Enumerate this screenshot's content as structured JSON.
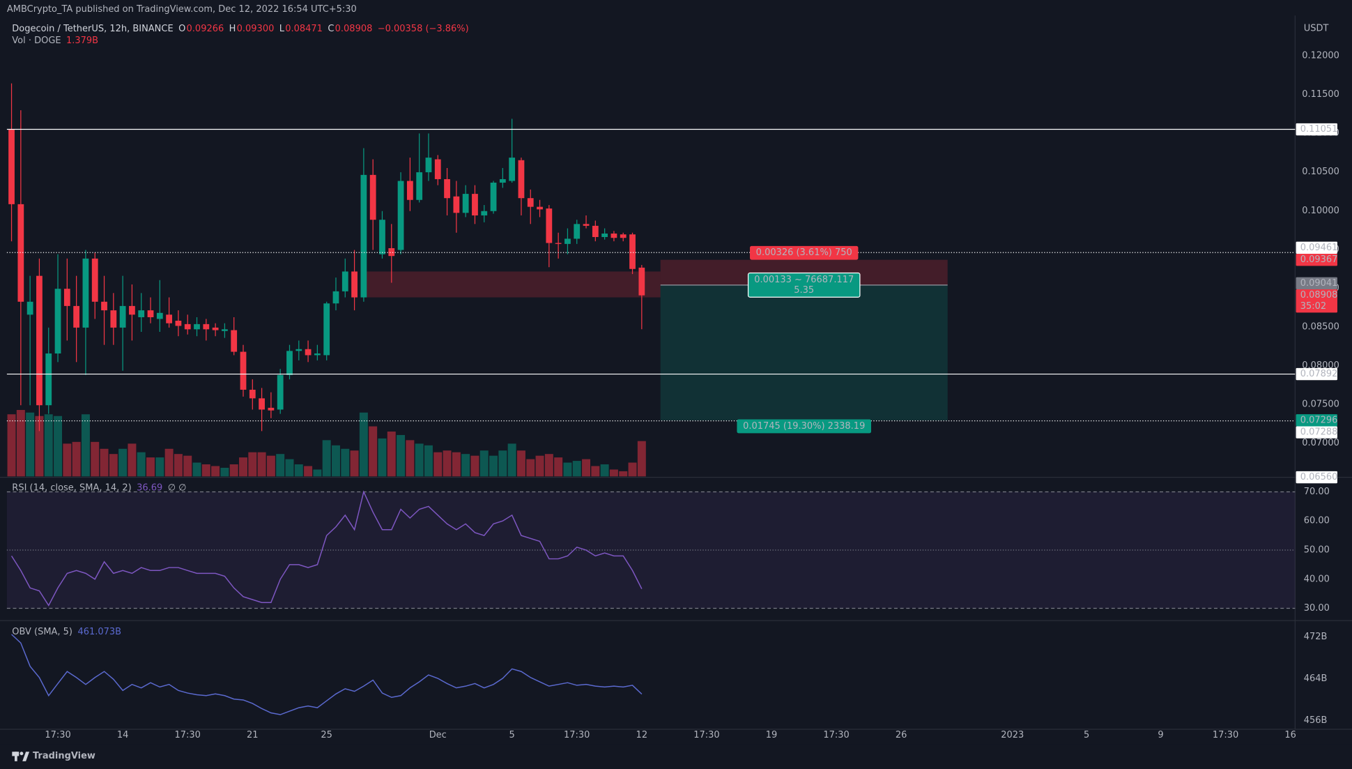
{
  "header": {
    "publisher": "AMBCrypto_TA published on TradingView.com, Dec 12, 2022 16:54 UTC+5:30",
    "symbol": "Dogecoin / TetherUS, 12h, BINANCE",
    "ohlc": [
      {
        "key": "O",
        "value": "0.09266"
      },
      {
        "key": "H",
        "value": "0.09300"
      },
      {
        "key": "L",
        "value": "0.08471"
      },
      {
        "key": "C",
        "value": "0.08908"
      }
    ],
    "change": "−0.00358 (−3.86%)",
    "volume_name": "Vol · DOGE",
    "volume_value": "1.379B",
    "currency": "USDT"
  },
  "chart_data": [
    {
      "type": "candlestick",
      "categories": [
        null,
        null,
        null,
        null,
        null,
        "17:30",
        null,
        null,
        null,
        null,
        null,
        null,
        "14",
        null,
        null,
        null,
        null,
        null,
        null,
        "17:30",
        null,
        null,
        null,
        null,
        null,
        null,
        "21",
        null,
        null,
        null,
        null,
        null,
        null,
        null,
        "25",
        null,
        null,
        null,
        null,
        null,
        null,
        null,
        null,
        null,
        null,
        null,
        "Dec",
        null,
        null,
        null,
        null,
        null,
        null,
        null,
        "5",
        null,
        null,
        null,
        null,
        null,
        null,
        "17:30",
        null,
        null,
        null,
        null,
        null,
        null,
        "12",
        null,
        null,
        null,
        null,
        null,
        null,
        "17:30",
        null,
        null,
        null,
        null,
        null,
        null,
        "19",
        null,
        null,
        null,
        null,
        null,
        null,
        "17:30",
        null,
        null,
        null,
        null,
        null,
        null,
        "26",
        null,
        null,
        null,
        null,
        null,
        null,
        null,
        null,
        null,
        null,
        null,
        "2023",
        null,
        null,
        null,
        null,
        null,
        null,
        null,
        "5",
        null,
        null,
        null,
        null,
        null,
        null,
        null,
        "9",
        null,
        null,
        null,
        null,
        null,
        null,
        "17:30",
        null,
        null,
        null,
        null,
        null,
        null,
        "16"
      ],
      "open": [
        0.11053,
        0.10085,
        0.08659,
        0.0916,
        0.0749,
        0.08158,
        0.08993,
        0.08771,
        0.08492,
        0.09383,
        0.08826,
        0.08715,
        0.08492,
        0.08771,
        0.08626,
        0.08715,
        0.08604,
        0.08659,
        0.08581,
        0.08537,
        0.0847,
        0.08537,
        0.08492,
        0.08448,
        0.08459,
        0.0818,
        0.0769,
        0.07579,
        0.07457,
        0.07434,
        0.0788,
        0.08191,
        0.08214,
        0.08136,
        0.08136,
        0.08804,
        0.0896,
        0.09216,
        0.08882,
        0.10463,
        0.09439,
        0.09517,
        0.09494,
        0.10385,
        0.1014,
        0.10497,
        0.10664,
        0.10408,
        0.10185,
        0.09973,
        0.10218,
        0.0994,
        0.09996,
        0.10363,
        0.10385,
        0.10653,
        0.10163,
        0.10051,
        0.10029,
        0.09584,
        0.09572,
        0.09639,
        0.09829,
        0.09806,
        0.09661,
        0.09706,
        0.09695,
        0.09695,
        0.09266,
        null,
        null,
        null,
        null,
        null,
        null,
        null,
        null,
        null,
        null,
        null,
        null,
        null,
        null,
        null,
        null,
        null,
        null,
        null,
        null,
        null,
        null,
        null,
        null,
        null,
        null,
        null,
        null,
        null,
        null,
        null,
        null,
        null,
        null,
        null,
        null,
        null,
        null,
        null,
        null,
        null,
        null,
        null,
        null,
        null,
        null,
        null,
        null,
        null,
        null,
        null,
        null,
        null,
        null,
        null,
        null,
        null,
        null,
        null,
        null,
        null,
        null,
        null,
        null,
        null,
        null,
        null,
        null,
        null,
        null
      ],
      "high": [
        0.11644,
        0.11298,
        0.0916,
        0.09383,
        0.08492,
        0.09439,
        0.09383,
        0.0916,
        0.09494,
        0.09461,
        0.0916,
        0.08938,
        0.0916,
        0.09049,
        0.08938,
        0.08882,
        0.09105,
        0.08882,
        0.08715,
        0.08659,
        0.08626,
        0.08604,
        0.08548,
        0.08548,
        0.08626,
        0.08269,
        0.07824,
        0.07713,
        0.07657,
        0.07958,
        0.08269,
        0.08325,
        0.08325,
        0.08269,
        0.08826,
        0.09138,
        0.09383,
        0.09494,
        0.10808,
        0.10664,
        0.09996,
        0.09829,
        0.10497,
        0.10686,
        0.10998,
        0.10998,
        0.10719,
        0.10552,
        0.10385,
        0.1033,
        0.1033,
        0.10074,
        0.10385,
        0.10552,
        0.11187,
        0.10686,
        0.10274,
        0.1014,
        0.10074,
        0.09717,
        0.09773,
        0.09884,
        0.0994,
        0.09873,
        0.09773,
        0.09739,
        0.09717,
        0.09717,
        0.093,
        null,
        null,
        null,
        null,
        null,
        null,
        null,
        null,
        null,
        null,
        null,
        null,
        null,
        null,
        null,
        null,
        null,
        null,
        null,
        null,
        null,
        null,
        null,
        null,
        null,
        null,
        null,
        null,
        null,
        null,
        null,
        null,
        null,
        null,
        null,
        null,
        null,
        null,
        null,
        null,
        null,
        null,
        null,
        null,
        null,
        null,
        null,
        null,
        null,
        null,
        null,
        null,
        null,
        null,
        null,
        null,
        null,
        null,
        null,
        null,
        null,
        null,
        null,
        null,
        null,
        null,
        null,
        null,
        null,
        null
      ],
      "low": [
        0.09606,
        0.0749,
        0.0749,
        0.07156,
        0.07379,
        0.08047,
        0.08325,
        0.08047,
        0.0788,
        0.08604,
        0.08269,
        0.08269,
        0.07935,
        0.08325,
        0.08437,
        0.08548,
        0.08437,
        0.08492,
        0.08381,
        0.08403,
        0.08381,
        0.08325,
        0.08381,
        0.08359,
        0.08136,
        0.07601,
        0.07434,
        0.07156,
        0.07323,
        0.07379,
        0.07824,
        0.08069,
        0.08047,
        0.08069,
        0.08069,
        0.08715,
        0.08882,
        0.08715,
        0.08826,
        0.09494,
        0.09383,
        0.09071,
        0.09439,
        0.09996,
        0.10107,
        0.10385,
        0.1033,
        0.0994,
        0.09717,
        0.09918,
        0.09829,
        0.09851,
        0.09962,
        0.10296,
        0.10363,
        0.0994,
        0.09829,
        0.09918,
        0.09272,
        0.09383,
        0.09439,
        0.09572,
        0.09773,
        0.09606,
        0.09628,
        0.09606,
        0.09606,
        0.09183,
        0.08471,
        null,
        null,
        null,
        null,
        null,
        null,
        null,
        null,
        null,
        null,
        null,
        null,
        null,
        null,
        null,
        null,
        null,
        null,
        null,
        null,
        null,
        null,
        null,
        null,
        null,
        null,
        null,
        null,
        null,
        null,
        null,
        null,
        null,
        null,
        null,
        null,
        null,
        null,
        null,
        null,
        null,
        null,
        null,
        null,
        null,
        null,
        null,
        null,
        null,
        null,
        null,
        null,
        null,
        null,
        null,
        null,
        null,
        null,
        null,
        null,
        null,
        null,
        null,
        null,
        null,
        null,
        null,
        null,
        null,
        null
      ],
      "close": [
        0.10085,
        0.08826,
        0.08826,
        0.0749,
        0.08158,
        0.08993,
        0.08771,
        0.08492,
        0.09383,
        0.08826,
        0.08715,
        0.08492,
        0.08771,
        0.08659,
        0.08715,
        0.08626,
        0.08682,
        0.08548,
        0.08514,
        0.0847,
        0.08537,
        0.0847,
        0.08459,
        0.0847,
        0.0818,
        0.0769,
        0.07579,
        0.07434,
        0.07423,
        0.0788,
        0.08191,
        0.08214,
        0.08136,
        0.08158,
        0.08804,
        0.0896,
        0.09216,
        0.08882,
        0.10463,
        0.09884,
        0.09884,
        0.09416,
        0.10385,
        0.1014,
        0.10497,
        0.10686,
        0.10408,
        0.10163,
        0.09973,
        0.10218,
        0.0994,
        0.09996,
        0.10363,
        0.10408,
        0.10686,
        0.10163,
        0.10051,
        0.10018,
        0.09584,
        0.09572,
        0.09639,
        0.09829,
        0.09806,
        0.09661,
        0.09706,
        0.0965,
        0.0965,
        0.09249,
        0.08908,
        null,
        null,
        null,
        null,
        null,
        null,
        null,
        null,
        null,
        null,
        null,
        null,
        null,
        null,
        null,
        null,
        null,
        null,
        null,
        null,
        null,
        null,
        null,
        null,
        null,
        null,
        null,
        null,
        null,
        null,
        null,
        null,
        null,
        null,
        null,
        null,
        null,
        null,
        null,
        null,
        null,
        null,
        null,
        null,
        null,
        null,
        null,
        null,
        null,
        null,
        null,
        null,
        null,
        null,
        null,
        null,
        null,
        null,
        null,
        null,
        null,
        null,
        null,
        null,
        null,
        null,
        null,
        null,
        null,
        null
      ],
      "volume": [
        2.424,
        2.593,
        2.492,
        2.357,
        2.424,
        2.357,
        1.279,
        1.347,
        2.424,
        1.347,
        1.077,
        0.875,
        1.077,
        1.279,
        0.943,
        0.741,
        0.741,
        1.077,
        0.875,
        0.808,
        0.539,
        0.471,
        0.404,
        0.337,
        0.471,
        0.741,
        0.943,
        0.943,
        0.808,
        0.875,
        0.673,
        0.471,
        0.404,
        0.269,
        1.414,
        1.212,
        1.077,
        1.01,
        2.492,
        1.953,
        1.481,
        1.751,
        1.616,
        1.414,
        1.279,
        1.212,
        0.943,
        1.01,
        0.943,
        0.875,
        0.808,
        1.01,
        0.808,
        1.01,
        1.279,
        1.01,
        0.673,
        0.808,
        0.875,
        0.741,
        0.539,
        0.606,
        0.673,
        0.404,
        0.471,
        0.269,
        0.202,
        0.539,
        1.379,
        null,
        null,
        null,
        null,
        null,
        null,
        null,
        null,
        null,
        null,
        null,
        null,
        null,
        null,
        null,
        null,
        null,
        null,
        null,
        null,
        null,
        null,
        null,
        null,
        null,
        null,
        null,
        null,
        null,
        null,
        null,
        null,
        null,
        null,
        null,
        null,
        null,
        null,
        null,
        null,
        null,
        null,
        null,
        null,
        null,
        null,
        null,
        null,
        null,
        null,
        null,
        null,
        null,
        null,
        null,
        null,
        null,
        null,
        null,
        null,
        null,
        null,
        null,
        null,
        null,
        null,
        null,
        null,
        null,
        null
      ],
      "ylim": [
        0.0656,
        0.1252
      ],
      "yticks": [
        {
          "value": 0.07,
          "label": "0.07000"
        },
        {
          "value": 0.075,
          "label": "0.07500"
        },
        {
          "value": 0.08,
          "label": "0.08000"
        },
        {
          "value": 0.085,
          "label": "0.08500"
        },
        {
          "value": 0.09,
          "label": "0.09000"
        },
        {
          "value": 0.095,
          "label": "0.09500"
        },
        {
          "value": 0.1,
          "label": "0.10000"
        },
        {
          "value": 0.105,
          "label": "0.10500"
        },
        {
          "value": 0.11,
          "label": "0.11000"
        },
        {
          "value": 0.115,
          "label": "0.11500"
        },
        {
          "value": 0.12,
          "label": "0.12000"
        }
      ],
      "grid": false,
      "colors": {
        "up": "#089981",
        "down": "#f23645",
        "level": "#ffffff",
        "entry": "#787b86"
      },
      "levels": [
        {
          "value": 0.11051,
          "label": "0.11051",
          "style": "solid"
        },
        {
          "value": 0.09461,
          "label": "0.09461",
          "style": "dotted"
        },
        {
          "value": 0.07892,
          "label": "0.07892",
          "style": "solid"
        },
        {
          "value": 0.07288,
          "label": "0.07288",
          "style": "dotted"
        }
      ],
      "axis_marks": [
        {
          "value": 0.0656,
          "label": "0.06560"
        }
      ],
      "last": {
        "value": 0.08908,
        "label": "0.08908",
        "countdown": "35:02"
      },
      "zone": [
        0.08882,
        0.09216
      ],
      "position": {
        "stop": {
          "value": 0.09367,
          "label": "0.09367"
        },
        "entry": {
          "value": 0.09041,
          "label": "0.09041"
        },
        "target": {
          "value": 0.07296,
          "label": "0.07296"
        },
        "stop_text": "0.00326 (3.61%) 750",
        "entry_text": [
          "0.00133 ~ 76687.117",
          "5.35"
        ],
        "target_text": "0.01745 (19.30%) 2338.19"
      }
    },
    {
      "type": "line",
      "legend": "RSI (14, close, SMA, 14, 2)",
      "extra": "∅  ∅",
      "color": "#7e57c2",
      "values": [
        48,
        43,
        37,
        36,
        31,
        37,
        42,
        43,
        42,
        40,
        46,
        42,
        43,
        42,
        44,
        43,
        43,
        44,
        44,
        43,
        42,
        42,
        42,
        41,
        37,
        34,
        33,
        32,
        32,
        40,
        45,
        45,
        44,
        45,
        55,
        58,
        62,
        57,
        70,
        63,
        57,
        57,
        64,
        61,
        64,
        65,
        62,
        59,
        57,
        59,
        56,
        55,
        59,
        60,
        62,
        55,
        54,
        53,
        47,
        47,
        48,
        51,
        50,
        48,
        49,
        48,
        48,
        43,
        36.69
      ],
      "ylim": [
        26.1,
        75
      ],
      "yticks": [
        {
          "value": 30,
          "label": "30.00"
        },
        {
          "value": 40,
          "label": "40.00"
        },
        {
          "value": 50,
          "label": "50.00"
        },
        {
          "value": 60,
          "label": "60.00"
        },
        {
          "value": 70,
          "label": "70.00"
        }
      ],
      "band": [
        30,
        70
      ],
      "midline": 50
    },
    {
      "type": "line",
      "legend": "OBV (SMA, 5)",
      "last_label": "461.073B",
      "color": "#5b6ad0",
      "values": [
        472.5,
        470.85,
        466.39,
        464.25,
        460.78,
        463.09,
        465.4,
        464.25,
        462.93,
        464.25,
        465.4,
        463.92,
        461.77,
        462.93,
        462.27,
        463.26,
        462.43,
        462.93,
        461.77,
        461.28,
        460.95,
        460.78,
        461.11,
        460.78,
        460.12,
        459.96,
        459.3,
        458.31,
        457.48,
        457.15,
        457.81,
        458.47,
        458.8,
        458.47,
        459.79,
        461.11,
        462.1,
        461.61,
        462.6,
        463.75,
        461.28,
        460.45,
        460.78,
        462.27,
        463.42,
        464.74,
        464.08,
        463.09,
        462.27,
        462.6,
        463.09,
        462.27,
        462.93,
        464.08,
        465.9,
        465.4,
        464.25,
        463.42,
        462.6,
        462.93,
        463.26,
        462.76,
        462.93,
        462.6,
        462.43,
        462.6,
        462.43,
        462.76,
        461.073
      ],
      "ylim": [
        454.35,
        474.97
      ],
      "yticks": [
        {
          "value": 456,
          "label": "456B"
        },
        {
          "value": 464,
          "label": "464B"
        },
        {
          "value": 472,
          "label": "472B"
        }
      ]
    }
  ],
  "footer": "TradingView"
}
